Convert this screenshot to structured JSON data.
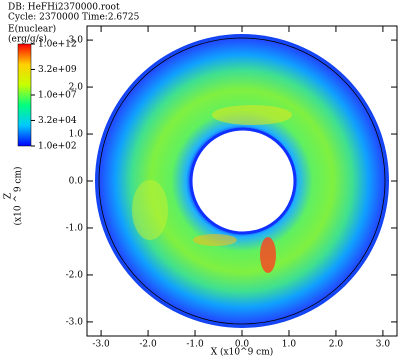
{
  "chart_data": {
    "type": "pseudocolor",
    "database": "DB: HeFHi2370000.root",
    "cycle_time": "Cycle: 2370000   Time:2.6725",
    "legend_title": "E(nuclear)",
    "legend_units": "(erg/g/s)",
    "x_label": "X (x10^9 cm)",
    "y_label": "Z",
    "y_label_units": "(x10 ^ 9 cm)",
    "xlim": [
      -3.3,
      3.3
    ],
    "ylim": [
      -3.3,
      3.3
    ],
    "xticks": [
      {
        "value": -3,
        "label": "-3.0"
      },
      {
        "value": -2,
        "label": "-2.0"
      },
      {
        "value": -1,
        "label": "-1.0"
      },
      {
        "value": 0,
        "label": "0.0"
      },
      {
        "value": 1,
        "label": "1.0"
      },
      {
        "value": 2,
        "label": "2.0"
      },
      {
        "value": 3,
        "label": "3.0"
      }
    ],
    "yticks": [
      {
        "value": -3,
        "label": "-3.0"
      },
      {
        "value": -2,
        "label": "-2.0"
      },
      {
        "value": -1,
        "label": "-1.0"
      },
      {
        "value": 0,
        "label": "0.0"
      },
      {
        "value": 1,
        "label": "1.0"
      },
      {
        "value": 2,
        "label": "2.0"
      },
      {
        "value": 3,
        "label": "3.0"
      }
    ],
    "color_scale": "log",
    "clim": [
      100,
      1000000000000
    ],
    "cticks": [
      {
        "value": 1000000000000,
        "label": "1.0e+12"
      },
      {
        "value": 3200000000,
        "label": "3.2e+09"
      },
      {
        "value": 10000000,
        "label": "1.0e+07"
      },
      {
        "value": 32000,
        "label": "3.2e+04"
      },
      {
        "value": 100,
        "label": "1.0e+02"
      }
    ],
    "colormap": [
      "#0000ff",
      "#00c8ff",
      "#00ff80",
      "#c8ff00",
      "#ffd000",
      "#ff0000"
    ]
  }
}
